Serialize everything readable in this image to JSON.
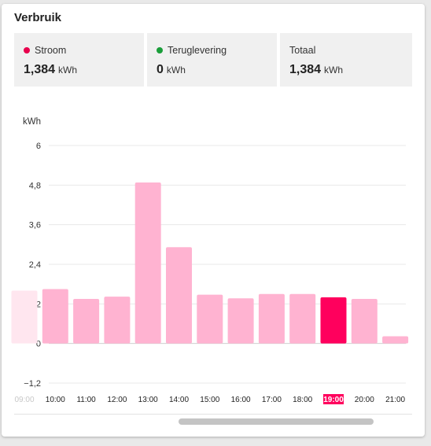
{
  "card": {
    "title": "Verbruik"
  },
  "stats": [
    {
      "label": "Stroom",
      "value": "1,384",
      "unit": "kWh",
      "dot_color": "#e8004d"
    },
    {
      "label": "Teruglevering",
      "value": "0",
      "unit": "kWh",
      "dot_color": "#1a9e3a"
    },
    {
      "label": "Totaal",
      "value": "1,384",
      "unit": "kWh",
      "dot_color": ""
    }
  ],
  "colors": {
    "bar": "#ffb3d1",
    "bar_selected": "#ff005d",
    "bar_faded": "#ffe6ef"
  },
  "chart_data": {
    "type": "bar",
    "ylabel": "kWh",
    "ylim": [
      -1.2,
      6
    ],
    "yticks": [
      "−1,2",
      "0",
      "1,2",
      "2,4",
      "3,6",
      "4,8",
      "6"
    ],
    "ytick_values": [
      -1.2,
      0,
      1.2,
      2.4,
      3.6,
      4.8,
      6
    ],
    "categories": [
      "09:00",
      "10:00",
      "11:00",
      "12:00",
      "13:00",
      "14:00",
      "15:00",
      "16:00",
      "17:00",
      "18:00",
      "19:00",
      "20:00",
      "21:00"
    ],
    "values": [
      1.6,
      1.65,
      1.35,
      1.42,
      4.88,
      2.92,
      1.48,
      1.37,
      1.5,
      1.5,
      1.4,
      1.35,
      0.22
    ],
    "selected": "19:00",
    "grid": true
  }
}
